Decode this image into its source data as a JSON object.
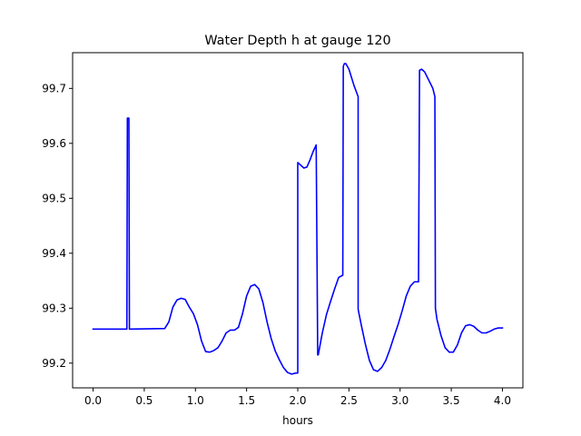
{
  "chart_data": {
    "type": "line",
    "title": "Water Depth h at gauge 120",
    "xlabel": "hours",
    "ylabel": "",
    "xlim": [
      -0.2,
      4.2
    ],
    "ylim": [
      99.155,
      99.765
    ],
    "xticks": [
      0.0,
      0.5,
      1.0,
      1.5,
      2.0,
      2.5,
      3.0,
      3.5,
      4.0
    ],
    "xtick_labels": [
      "0.0",
      "0.5",
      "1.0",
      "1.5",
      "2.0",
      "2.5",
      "3.0",
      "3.5",
      "4.0"
    ],
    "yticks": [
      99.2,
      99.3,
      99.4,
      99.5,
      99.6,
      99.7
    ],
    "ytick_labels": [
      "99.2",
      "99.3",
      "99.4",
      "99.5",
      "99.6",
      "99.7"
    ],
    "grid": false,
    "series": [
      {
        "name": "",
        "color": "#0000ff",
        "x": [
          0.0,
          0.33,
          0.335,
          0.34,
          0.345,
          0.35,
          0.355,
          0.36,
          0.7,
          0.74,
          0.78,
          0.82,
          0.86,
          0.9,
          0.94,
          0.98,
          1.02,
          1.06,
          1.1,
          1.14,
          1.18,
          1.22,
          1.26,
          1.3,
          1.34,
          1.38,
          1.42,
          1.46,
          1.5,
          1.54,
          1.58,
          1.62,
          1.66,
          1.7,
          1.74,
          1.78,
          1.82,
          1.86,
          1.9,
          1.94,
          1.98,
          2.0,
          2.0,
          2.03,
          2.06,
          2.09,
          2.12,
          2.15,
          2.18,
          2.195,
          2.2,
          2.24,
          2.28,
          2.32,
          2.36,
          2.4,
          2.44,
          2.445,
          2.455,
          2.47,
          2.5,
          2.55,
          2.59,
          2.59,
          2.62,
          2.66,
          2.7,
          2.74,
          2.78,
          2.82,
          2.86,
          2.9,
          2.94,
          2.98,
          3.02,
          3.06,
          3.1,
          3.14,
          3.18,
          3.19,
          3.19,
          3.21,
          3.24,
          3.28,
          3.32,
          3.34,
          3.345,
          3.36,
          3.4,
          3.44,
          3.48,
          3.52,
          3.56,
          3.6,
          3.64,
          3.68,
          3.72,
          3.76,
          3.8,
          3.84,
          3.88,
          3.92,
          3.96,
          4.0
        ],
        "y": [
          99.262,
          99.262,
          99.646,
          99.646,
          99.646,
          99.646,
          99.262,
          99.262,
          99.263,
          99.275,
          99.302,
          99.315,
          99.318,
          99.316,
          99.302,
          99.29,
          99.27,
          99.24,
          99.221,
          99.22,
          99.223,
          99.228,
          99.24,
          99.255,
          99.26,
          99.26,
          99.265,
          99.29,
          99.322,
          99.34,
          99.343,
          99.335,
          99.31,
          99.275,
          99.245,
          99.222,
          99.206,
          99.192,
          99.183,
          99.18,
          99.182,
          99.182,
          99.565,
          99.56,
          99.555,
          99.557,
          99.57,
          99.585,
          99.597,
          99.215,
          99.215,
          99.255,
          99.288,
          99.312,
          99.335,
          99.356,
          99.36,
          99.74,
          99.745,
          99.745,
          99.735,
          99.705,
          99.685,
          99.298,
          99.27,
          99.235,
          99.205,
          99.188,
          99.185,
          99.192,
          99.205,
          99.225,
          99.248,
          99.27,
          99.295,
          99.322,
          99.34,
          99.348,
          99.348,
          99.733,
          99.733,
          99.735,
          99.73,
          99.715,
          99.7,
          99.685,
          99.3,
          99.28,
          99.25,
          99.228,
          99.22,
          99.22,
          99.233,
          99.255,
          99.268,
          99.27,
          99.267,
          99.26,
          99.255,
          99.255,
          99.258,
          99.262,
          99.264,
          99.264
        ]
      }
    ]
  }
}
